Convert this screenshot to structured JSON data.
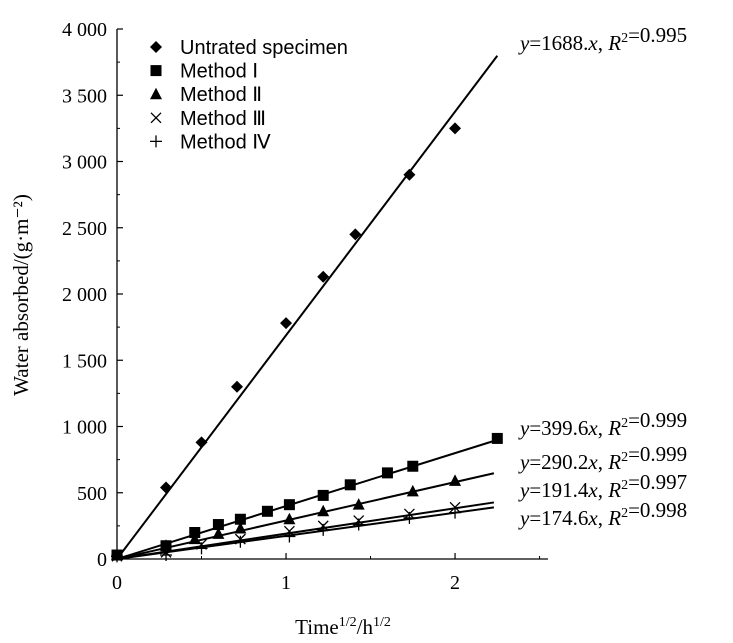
{
  "chart_data": {
    "type": "scatter",
    "xlabel_main": "Time",
    "xlabel_sup1": "1/2",
    "xlabel_mid": "/h",
    "xlabel_sup2": "1/2",
    "ylabel": "Water absorbed/(g·m⁻²)",
    "xlim": [
      0,
      2.55
    ],
    "ylim": [
      0,
      4000
    ],
    "x_ticks": [
      {
        "value": 0,
        "label": "0"
      },
      {
        "value": 1,
        "label": "1"
      },
      {
        "value": 2,
        "label": "2"
      }
    ],
    "y_ticks": [
      {
        "value": 0,
        "label": "0"
      },
      {
        "value": 500,
        "label": "500"
      },
      {
        "value": 1000,
        "label": "1 000"
      },
      {
        "value": 1500,
        "label": "1 500"
      },
      {
        "value": 2000,
        "label": "2 000"
      },
      {
        "value": 2500,
        "label": "2 500"
      },
      {
        "value": 3000,
        "label": "3 000"
      },
      {
        "value": 3500,
        "label": "3 500"
      },
      {
        "value": 4000,
        "label": "4 000"
      }
    ],
    "legend_position": "top-left",
    "series": [
      {
        "name": "Untrated specimen",
        "marker": "diamond",
        "slope": 1688,
        "fit_x_end": 2.25,
        "equation": {
          "slope_text": "1688.",
          "r2": "0.995"
        },
        "points": [
          [
            0,
            30
          ],
          [
            0.29,
            540
          ],
          [
            0.5,
            880
          ],
          [
            0.71,
            1300
          ],
          [
            1.0,
            1780
          ],
          [
            1.22,
            2130
          ],
          [
            1.41,
            2450
          ],
          [
            1.73,
            2900
          ],
          [
            2.0,
            3250
          ]
        ]
      },
      {
        "name": "Method Ⅰ",
        "marker": "square",
        "slope": 399.6,
        "fit_x_end": 2.25,
        "equation": {
          "slope_text": "399.6",
          "r2": "0.999"
        },
        "points": [
          [
            0,
            30
          ],
          [
            0.29,
            100
          ],
          [
            0.46,
            200
          ],
          [
            0.6,
            260
          ],
          [
            0.73,
            300
          ],
          [
            0.89,
            360
          ],
          [
            1.02,
            410
          ],
          [
            1.22,
            480
          ],
          [
            1.38,
            560
          ],
          [
            1.6,
            650
          ],
          [
            1.75,
            700
          ],
          [
            2.25,
            910
          ]
        ]
      },
      {
        "name": "Method Ⅱ",
        "marker": "triangle",
        "slope": 290.2,
        "fit_x_end": 2.23,
        "equation": {
          "slope_text": "290.2",
          "r2": "0.999"
        },
        "points": [
          [
            0,
            30
          ],
          [
            0.29,
            100
          ],
          [
            0.46,
            150
          ],
          [
            0.6,
            190
          ],
          [
            0.73,
            230
          ],
          [
            1.02,
            300
          ],
          [
            1.22,
            360
          ],
          [
            1.43,
            410
          ],
          [
            1.75,
            510
          ],
          [
            2.0,
            590
          ]
        ]
      },
      {
        "name": "Method Ⅲ",
        "marker": "x",
        "slope": 191.4,
        "fit_x_end": 2.23,
        "equation": {
          "slope_text": "191.4",
          "r2": "0.997"
        },
        "points": [
          [
            0,
            20
          ],
          [
            0.29,
            50
          ],
          [
            0.5,
            110
          ],
          [
            0.73,
            150
          ],
          [
            1.02,
            210
          ],
          [
            1.22,
            250
          ],
          [
            1.43,
            290
          ],
          [
            1.73,
            340
          ],
          [
            2.0,
            390
          ]
        ]
      },
      {
        "name": "Method Ⅳ",
        "marker": "plus",
        "slope": 174.6,
        "fit_x_end": 2.23,
        "equation": {
          "slope_text": "174.6",
          "r2": "0.998"
        },
        "points": [
          [
            0,
            20
          ],
          [
            0.29,
            30
          ],
          [
            0.5,
            80
          ],
          [
            0.73,
            130
          ],
          [
            1.02,
            170
          ],
          [
            1.22,
            220
          ],
          [
            1.43,
            260
          ],
          [
            1.73,
            310
          ],
          [
            2.0,
            350
          ]
        ]
      }
    ]
  }
}
